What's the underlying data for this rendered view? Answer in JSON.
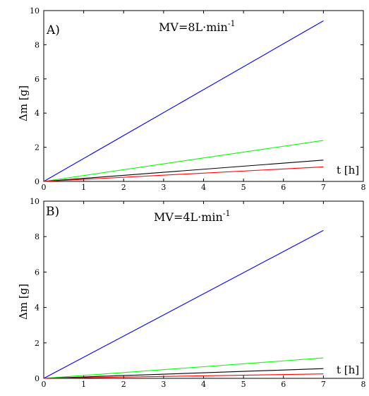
{
  "chart_data": [
    {
      "type": "line",
      "panel_label": "A)",
      "condition": {
        "text": "MV=8L·min",
        "superscript": "-1"
      },
      "xlabel": "t [h]",
      "ylabel": "Δm [g]",
      "xlim": [
        0,
        8
      ],
      "ylim": [
        0,
        10
      ],
      "x_ticks": [
        0,
        1,
        2,
        3,
        4,
        5,
        6,
        7,
        8
      ],
      "y_ticks": [
        0,
        2,
        4,
        6,
        8,
        10
      ],
      "series": [
        {
          "color": "#0000ff",
          "x": [
            0,
            7
          ],
          "y": [
            0,
            9.4
          ]
        },
        {
          "color": "#00ff00",
          "x": [
            0,
            7
          ],
          "y": [
            0,
            2.4
          ]
        },
        {
          "color": "#000000",
          "x": [
            0,
            7
          ],
          "y": [
            0,
            1.25
          ]
        },
        {
          "color": "#ff0000",
          "x": [
            0,
            7
          ],
          "y": [
            0,
            0.85
          ]
        }
      ]
    },
    {
      "type": "line",
      "panel_label": "B)",
      "condition": {
        "text": "MV=4L·min",
        "superscript": "-1"
      },
      "xlabel": "t [h]",
      "ylabel": "Δm [g]",
      "xlim": [
        0,
        8
      ],
      "ylim": [
        0,
        10
      ],
      "x_ticks": [
        0,
        1,
        2,
        3,
        4,
        5,
        6,
        7,
        8
      ],
      "y_ticks": [
        0,
        2,
        4,
        6,
        8,
        10
      ],
      "series": [
        {
          "color": "#0000ff",
          "x": [
            0,
            7
          ],
          "y": [
            0,
            8.35
          ]
        },
        {
          "color": "#00ff00",
          "x": [
            0,
            7
          ],
          "y": [
            0,
            1.15
          ]
        },
        {
          "color": "#000000",
          "x": [
            0,
            7
          ],
          "y": [
            0,
            0.55
          ]
        },
        {
          "color": "#ff0000",
          "x": [
            0,
            7
          ],
          "y": [
            0,
            0.25
          ]
        }
      ]
    }
  ]
}
